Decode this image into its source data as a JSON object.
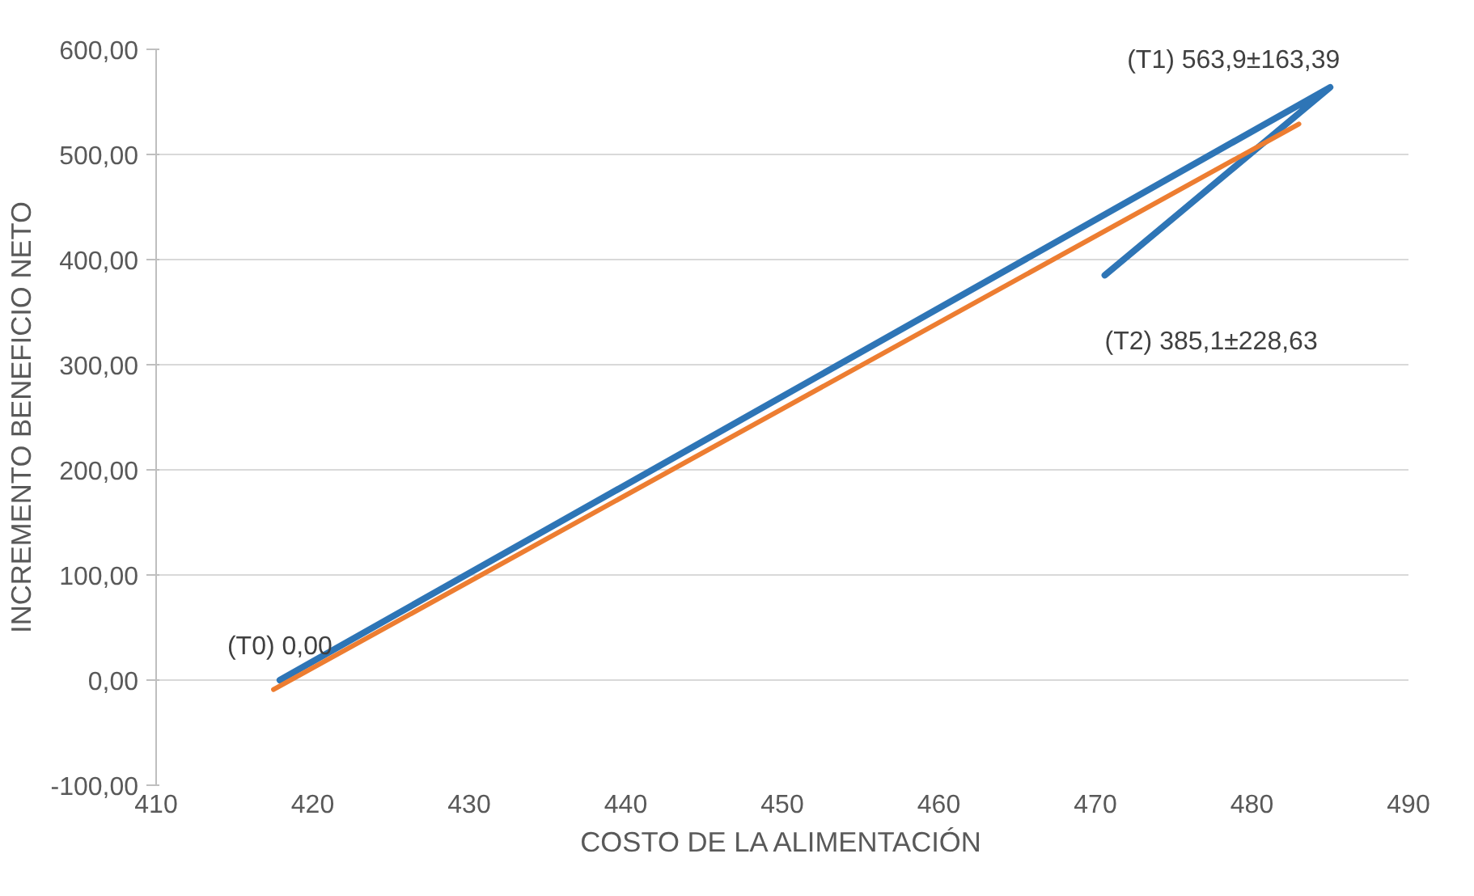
{
  "chart_data": {
    "type": "line",
    "xlabel": "COSTO DE LA ALIMENTACIÓN",
    "ylabel": "INCREMENTO BENEFICIO NETO",
    "series": [
      {
        "color": "#2e75b6",
        "x": [
          417.9,
          485.0,
          470.6
        ],
        "values": [
          0.0,
          563.9,
          385.1
        ]
      },
      {
        "type": "line",
        "color": "#ed7d31",
        "x": [
          417.5,
          483.0
        ],
        "values": [
          -9,
          529
        ]
      }
    ],
    "xlim": [
      410,
      490
    ],
    "xticks": [
      410,
      420,
      430,
      440,
      450,
      460,
      470,
      480,
      490
    ],
    "ylim": [
      -100,
      600
    ],
    "yticks": [
      {
        "value": -100,
        "label": "-100,00"
      },
      {
        "value": 0,
        "label": "0,00"
      },
      {
        "value": 100,
        "label": "100,00"
      },
      {
        "value": 200,
        "label": "200,00"
      },
      {
        "value": 300,
        "label": "300,00"
      },
      {
        "value": 400,
        "label": "400,00"
      },
      {
        "value": 500,
        "label": "500,00"
      },
      {
        "value": 600,
        "label": "600,00"
      }
    ],
    "grid": "y",
    "marker": "none",
    "line_style": "solid",
    "annotations": [
      {
        "text": "(T0) 0,00",
        "x": 417.9,
        "y": 0.0
      },
      {
        "text": "(T1) 563,9±163,39",
        "x": 485.0,
        "y": 563.9
      },
      {
        "text": "(T2) 385,1±228,63",
        "x": 470.6,
        "y": 385.1
      }
    ]
  }
}
